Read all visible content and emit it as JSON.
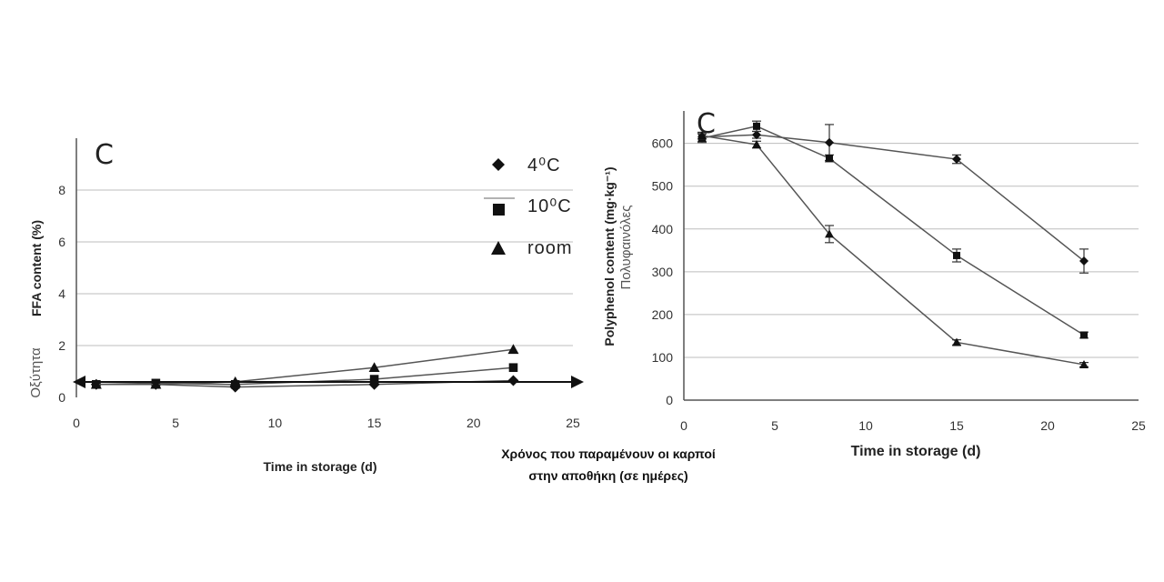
{
  "left_panel": {
    "panel_letter": "C",
    "ylabel": "FFA content (%)",
    "xlabel": "Time in storage (d)",
    "side_note": "Οξύτητα",
    "legend": [
      {
        "label": "4⁰C",
        "marker": "diamond"
      },
      {
        "label": "10⁰C",
        "marker": "square"
      },
      {
        "label": "room",
        "marker": "triangle"
      }
    ]
  },
  "right_panel": {
    "panel_letter": "C",
    "ylabel": "Polyphenol content (mg·kg⁻¹)",
    "xlabel": "Time in storage (d)",
    "side_note": "Πολυφαινόλες"
  },
  "caption": {
    "line1": "Χρόνος που παραμένουν οι καρποί",
    "line2": "στην αποθήκη (σε ημέρες)"
  },
  "chart_data": [
    {
      "type": "line",
      "title": "",
      "xlabel": "Time in storage (d)",
      "ylabel": "FFA content (%)",
      "xlim": [
        0,
        25
      ],
      "ylim": [
        0,
        10
      ],
      "xticks": [
        0,
        5,
        10,
        15,
        20,
        25
      ],
      "yticks": [
        0,
        2,
        4,
        6,
        8
      ],
      "grid": "horizontal",
      "legend_position": "top-right",
      "x": [
        1,
        4,
        8,
        15,
        22
      ],
      "series": [
        {
          "name": "4⁰C",
          "marker": "diamond",
          "values": [
            0.5,
            0.5,
            0.4,
            0.5,
            0.65
          ]
        },
        {
          "name": "10⁰C",
          "marker": "square",
          "values": [
            0.5,
            0.55,
            0.5,
            0.7,
            1.15
          ]
        },
        {
          "name": "room",
          "marker": "triangle",
          "values": [
            0.5,
            0.5,
            0.6,
            1.15,
            1.85
          ]
        }
      ]
    },
    {
      "type": "line",
      "title": "",
      "xlabel": "Time in storage (d)",
      "ylabel": "Polyphenol content (mg·kg⁻¹)",
      "xlim": [
        0,
        25
      ],
      "ylim": [
        0,
        680
      ],
      "xticks": [
        0,
        5,
        10,
        15,
        20,
        25
      ],
      "yticks": [
        0,
        100,
        200,
        300,
        400,
        500,
        600
      ],
      "grid": "horizontal",
      "error_bars": true,
      "x": [
        1,
        4,
        8,
        15,
        22
      ],
      "series": [
        {
          "name": "4⁰C",
          "marker": "diamond",
          "values": [
            615,
            620,
            602,
            563,
            325
          ],
          "errors": [
            10,
            8,
            42,
            10,
            28
          ]
        },
        {
          "name": "10⁰C",
          "marker": "square",
          "values": [
            612,
            640,
            565,
            338,
            152
          ],
          "errors": [
            10,
            12,
            8,
            15,
            7
          ]
        },
        {
          "name": "room",
          "marker": "triangle",
          "values": [
            618,
            597,
            388,
            135,
            83
          ],
          "errors": [
            8,
            8,
            20,
            6,
            5
          ]
        }
      ]
    }
  ]
}
